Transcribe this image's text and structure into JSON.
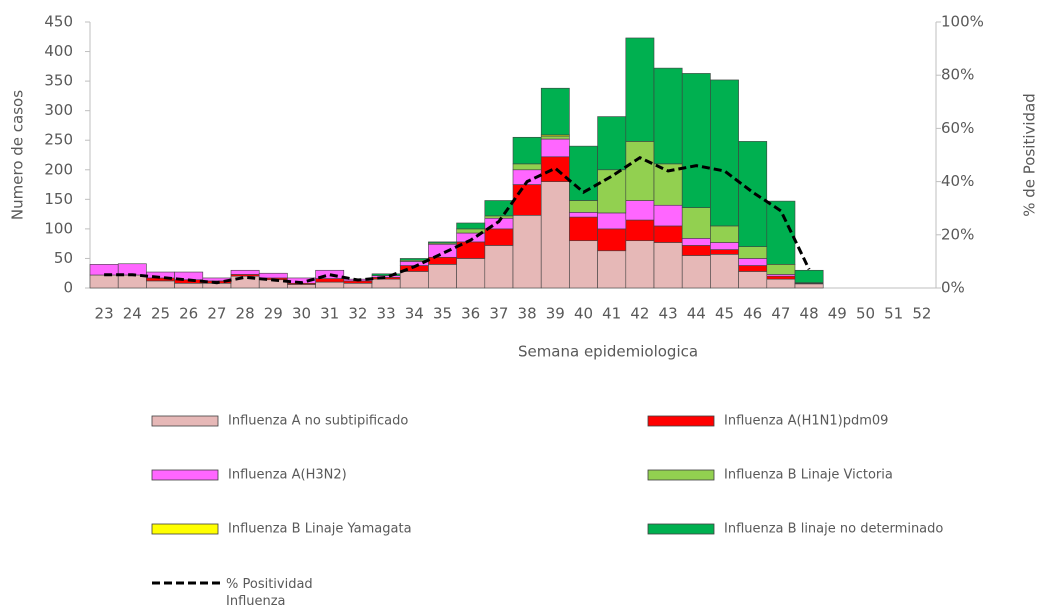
{
  "chart_data": {
    "type": "bar",
    "stacked": true,
    "x_label": "Semana epidemiologica",
    "y_label": "Numero de casos",
    "y2_label": "% de Positividad",
    "categories": [
      "23",
      "24",
      "25",
      "26",
      "27",
      "28",
      "29",
      "30",
      "31",
      "32",
      "33",
      "34",
      "35",
      "36",
      "37",
      "38",
      "39",
      "40",
      "41",
      "42",
      "43",
      "44",
      "45",
      "46",
      "47",
      "48",
      "49",
      "50",
      "51",
      "52"
    ],
    "ylim": [
      0,
      450
    ],
    "yticks": [
      0,
      50,
      100,
      150,
      200,
      250,
      300,
      350,
      400,
      450
    ],
    "y2lim": [
      0,
      100
    ],
    "y2ticks": [
      {
        "value": 0,
        "label": "0%"
      },
      {
        "value": 20,
        "label": "20%"
      },
      {
        "value": 40,
        "label": "40%"
      },
      {
        "value": 60,
        "label": "60%"
      },
      {
        "value": 80,
        "label": "80%"
      },
      {
        "value": 100,
        "label": "100%"
      }
    ],
    "series": [
      {
        "name": "Influenza A no subtipificado",
        "color": "#e6b8b7",
        "values": [
          22,
          22,
          12,
          8,
          8,
          20,
          14,
          6,
          10,
          8,
          15,
          28,
          40,
          50,
          72,
          123,
          180,
          80,
          63,
          80,
          77,
          55,
          57,
          28,
          15,
          7,
          0,
          0,
          0,
          0
        ]
      },
      {
        "name": "Influenza A(H1N1)pdm09",
        "color": "#ff0000",
        "values": [
          0,
          0,
          5,
          6,
          4,
          3,
          3,
          2,
          6,
          4,
          3,
          10,
          12,
          28,
          28,
          52,
          42,
          40,
          37,
          35,
          28,
          17,
          8,
          10,
          5,
          1,
          0,
          0,
          0,
          0
        ]
      },
      {
        "name": "Influenza A(H3N2)",
        "color": "#ff66ff",
        "values": [
          18,
          19,
          10,
          13,
          5,
          7,
          8,
          9,
          14,
          3,
          3,
          7,
          22,
          15,
          18,
          25,
          30,
          8,
          27,
          33,
          35,
          12,
          12,
          12,
          3,
          1,
          0,
          0,
          0,
          0
        ]
      },
      {
        "name": "Influenza B Linaje Victoria",
        "color": "#92d050",
        "values": [
          0,
          0,
          0,
          0,
          0,
          0,
          0,
          0,
          0,
          0,
          0,
          2,
          2,
          7,
          4,
          10,
          5,
          20,
          73,
          100,
          70,
          52,
          28,
          20,
          17,
          0,
          0,
          0,
          0,
          0
        ]
      },
      {
        "name": "Influenza B Linaje Yamagata",
        "color": "#ffff00",
        "values": [
          0,
          0,
          0,
          0,
          0,
          0,
          0,
          0,
          0,
          0,
          0,
          0,
          0,
          0,
          0,
          0,
          2,
          0,
          0,
          0,
          0,
          0,
          0,
          0,
          0,
          0,
          0,
          0,
          0,
          0
        ]
      },
      {
        "name": "Influenza B linaje no determinado",
        "color": "#00b050",
        "values": [
          0,
          0,
          0,
          0,
          0,
          0,
          0,
          0,
          0,
          0,
          3,
          3,
          2,
          10,
          26,
          45,
          79,
          92,
          90,
          175,
          162,
          227,
          247,
          178,
          107,
          21,
          0,
          0,
          0,
          0
        ]
      },
      {
        "name": "% Positividad Influenza",
        "color": "#000000",
        "axis": "y2",
        "line_style": "dashed",
        "values": [
          5,
          5,
          4,
          3,
          2,
          4,
          3,
          2,
          5,
          3,
          4,
          8,
          13,
          18,
          25,
          40,
          45,
          36,
          42,
          49,
          44,
          46,
          44,
          36,
          29,
          7,
          null,
          null,
          null,
          null
        ]
      }
    ]
  }
}
